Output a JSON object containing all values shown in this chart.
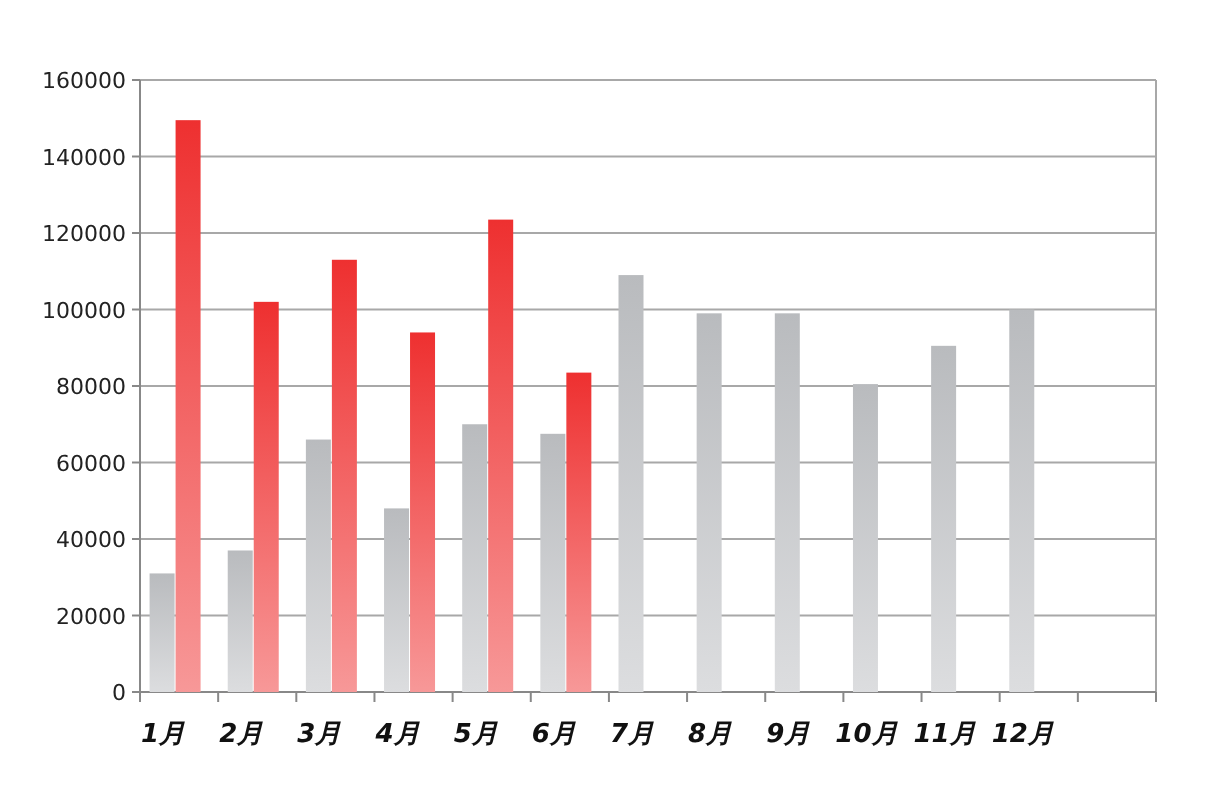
{
  "chart_data": {
    "type": "bar",
    "categories": [
      "1月",
      "2月",
      "3月",
      "4月",
      "5月",
      "6月",
      "7月",
      "8月",
      "9月",
      "10月",
      "11月",
      "12月",
      null
    ],
    "series": [
      {
        "color": "#b9bbbe",
        "values": [
          31000,
          37000,
          66000,
          48000,
          70000,
          67500,
          109000,
          99000,
          99000,
          80500,
          90500,
          100000,
          null
        ]
      },
      {
        "color": "#ee3030",
        "values": [
          149500,
          102000,
          113000,
          94000,
          123500,
          83500,
          null,
          null,
          null,
          null,
          null,
          null,
          null
        ]
      }
    ],
    "ylim": [
      0,
      160000
    ],
    "yticks": [
      0,
      20000,
      40000,
      60000,
      80000,
      100000,
      120000,
      140000,
      160000
    ],
    "grid": "y"
  }
}
